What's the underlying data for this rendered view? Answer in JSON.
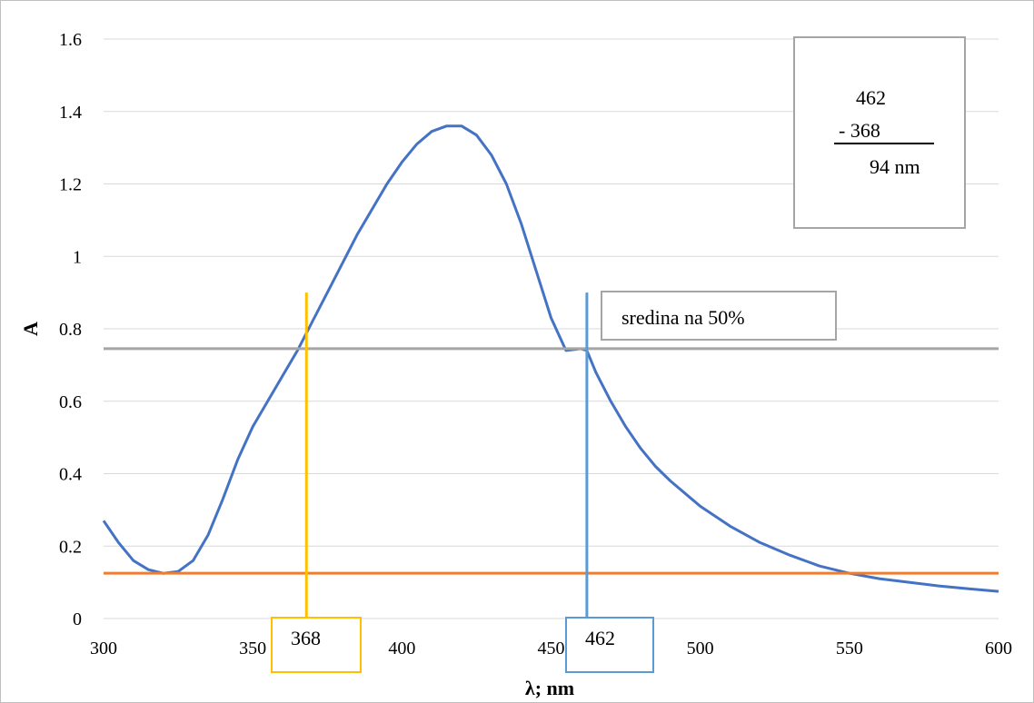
{
  "chart_data": {
    "type": "line",
    "xlabel": "λ; nm",
    "ylabel": "A",
    "xlim": [
      300,
      600
    ],
    "ylim": [
      0,
      1.6
    ],
    "x_ticks": [
      "300",
      "350",
      "400",
      "450",
      "500",
      "550",
      "600"
    ],
    "y_ticks": [
      "0",
      "0.2",
      "0.4",
      "0.6",
      "0.8",
      "1",
      "1.2",
      "1.4",
      "1.6"
    ],
    "grid": true,
    "series": [
      {
        "color": "#4472C4",
        "x": [
          300,
          305,
          310,
          315,
          320,
          325,
          330,
          335,
          340,
          345,
          350,
          355,
          360,
          365,
          370,
          375,
          380,
          385,
          390,
          395,
          400,
          405,
          410,
          415,
          420,
          425,
          430,
          435,
          440,
          445,
          450,
          455,
          460,
          462,
          465,
          470,
          475,
          480,
          485,
          490,
          500,
          510,
          520,
          530,
          540,
          550,
          560,
          570,
          580,
          590,
          600
        ],
        "y": [
          0.27,
          0.21,
          0.16,
          0.135,
          0.125,
          0.13,
          0.16,
          0.23,
          0.33,
          0.44,
          0.53,
          0.6,
          0.67,
          0.74,
          0.82,
          0.9,
          0.98,
          1.06,
          1.13,
          1.2,
          1.26,
          1.31,
          1.345,
          1.36,
          1.36,
          1.335,
          1.28,
          1.2,
          1.09,
          0.96,
          0.83,
          0.74,
          0.745,
          0.74,
          0.68,
          0.6,
          0.53,
          0.47,
          0.42,
          0.38,
          0.31,
          0.255,
          0.21,
          0.175,
          0.145,
          0.125,
          0.11,
          0.1,
          0.09,
          0.082,
          0.075
        ]
      }
    ],
    "reference_lines": [
      {
        "kind": "horizontal",
        "value": 0.745,
        "color": "#A5A5A5"
      },
      {
        "kind": "horizontal",
        "value": 0.125,
        "color": "#ED7D31"
      },
      {
        "kind": "vertical",
        "value": 368,
        "y_top": 0.9,
        "color": "#FFC000"
      },
      {
        "kind": "vertical",
        "value": 462,
        "y_top": 0.9,
        "color": "#5B9BD5"
      }
    ],
    "annotations": {
      "mid_label": "sredina na 50%",
      "left_marker": "368",
      "right_marker": "462",
      "calc_line1": "462",
      "calc_line2": "- 368",
      "calc_line3": "94 nm"
    }
  }
}
